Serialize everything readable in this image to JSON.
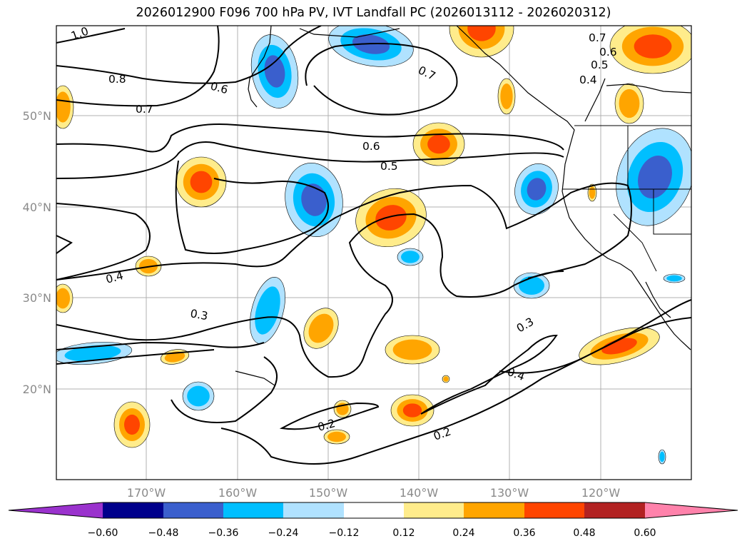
{
  "title": "2026012900 F096 700 hPa PV, IVT Landfall PC (2026013112 - 2026020312)",
  "map": {
    "lat_labels": [
      "50°N",
      "40°N",
      "30°N",
      "20°N"
    ],
    "lon_labels": [
      "170°W",
      "160°W",
      "150°W",
      "140°W",
      "130°W",
      "120°W"
    ]
  },
  "contours": {
    "color": "#000000",
    "labels": [
      "1.0",
      "0.8",
      "0.7",
      "0.6",
      "0.7",
      "0.6",
      "0.5",
      "0.7",
      "0.6",
      "0.5",
      "0.4",
      "0.4",
      "0.3",
      "0.3",
      "0.4",
      "0.2",
      "0.2"
    ]
  },
  "colorbar": {
    "tick_labels": [
      "−0.60",
      "−0.48",
      "−0.36",
      "−0.24",
      "−0.12",
      "0.12",
      "0.24",
      "0.36",
      "0.48",
      "0.60"
    ],
    "colors": [
      "#9a32cd",
      "#00008b",
      "#3a5fcd",
      "#00bfff",
      "#b0e2ff",
      "#ffffff",
      "#ffec8b",
      "#ffa500",
      "#ff4500",
      "#b22222",
      "#ff82ab"
    ]
  },
  "fill_colors": {
    "neg_light": "#b0e2ff",
    "neg_mid": "#00bfff",
    "neg_strong": "#3a5fcd",
    "pos_light": "#ffec8b",
    "pos_mid": "#ffa500",
    "pos_strong": "#ff4500"
  }
}
